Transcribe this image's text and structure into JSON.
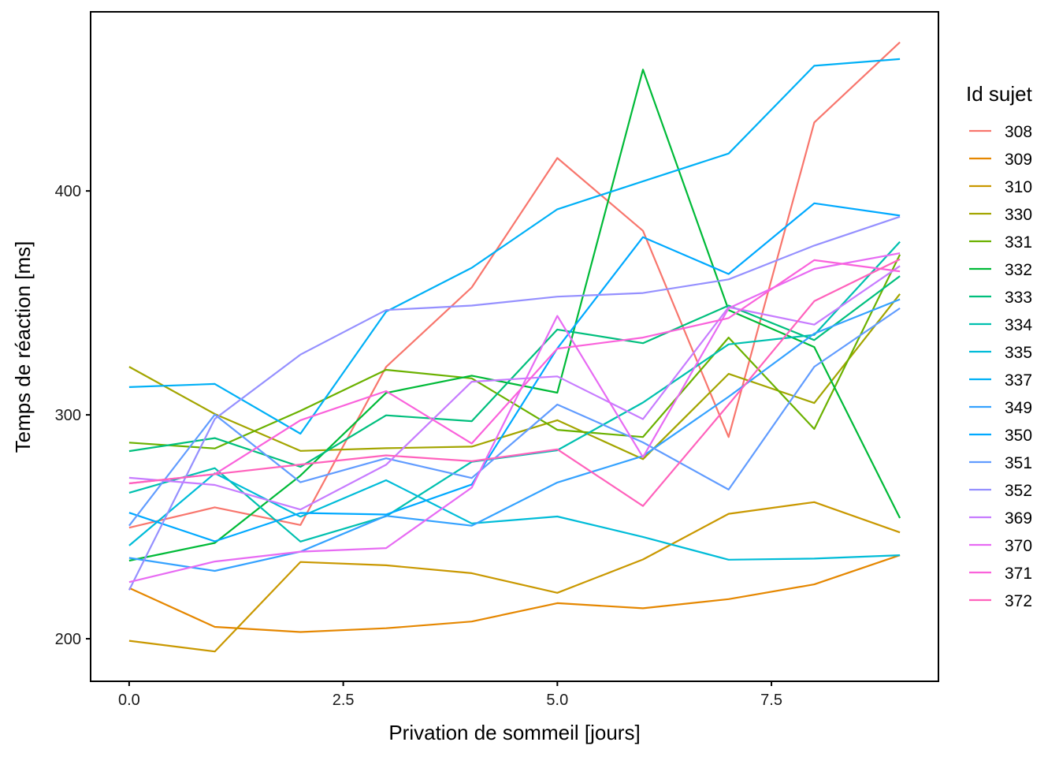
{
  "chart_data": {
    "type": "line",
    "title": "",
    "xlabel": "Privation de sommeil  [jours]",
    "ylabel": "Temps de réaction  [ms]",
    "xlim": [
      -0.45,
      9.45
    ],
    "ylim": [
      181,
      480
    ],
    "x_ticks": [
      0,
      2.5,
      5,
      7.5
    ],
    "x_tick_labels": [
      "0.0",
      "2.5",
      "5.0",
      "7.5"
    ],
    "y_ticks": [
      200,
      300,
      400
    ],
    "y_tick_labels": [
      "200",
      "300",
      "400"
    ],
    "grid": false,
    "legend": {
      "title": "Id sujet",
      "position": "right"
    },
    "x": [
      0,
      1,
      2,
      3,
      4,
      5,
      6,
      7,
      8,
      9
    ],
    "series": [
      {
        "name": "308",
        "color": "#F8766D",
        "values": [
          249.6,
          258.7,
          250.8,
          321.4,
          356.9,
          414.7,
          382.2,
          290.1,
          430.6,
          466.4
        ]
      },
      {
        "name": "309",
        "color": "#E58700",
        "values": [
          222.7,
          205.3,
          203.0,
          204.7,
          207.7,
          215.9,
          213.6,
          217.7,
          224.3,
          237.3
        ]
      },
      {
        "name": "310",
        "color": "#C99800",
        "values": [
          199.1,
          194.3,
          234.3,
          232.8,
          229.3,
          220.5,
          235.4,
          255.8,
          261.0,
          247.5
        ]
      },
      {
        "name": "330",
        "color": "#A3A500",
        "values": [
          321.5,
          300.4,
          283.9,
          285.1,
          285.8,
          297.6,
          280.2,
          318.3,
          305.3,
          354.0
        ]
      },
      {
        "name": "331",
        "color": "#6BB100",
        "values": [
          287.6,
          285.0,
          301.8,
          320.1,
          316.3,
          293.3,
          290.1,
          334.5,
          293.7,
          371.6
        ]
      },
      {
        "name": "332",
        "color": "#00BA38",
        "values": [
          234.9,
          242.8,
          272.9,
          309.8,
          317.5,
          309.9,
          454.2,
          346.8,
          330.3,
          253.9
        ]
      },
      {
        "name": "333",
        "color": "#00BF7D",
        "values": [
          283.8,
          289.6,
          276.8,
          299.8,
          297.2,
          338.1,
          332.0,
          348.8,
          333.4,
          362.0
        ]
      },
      {
        "name": "334",
        "color": "#00C0AF",
        "values": [
          265.2,
          276.2,
          243.4,
          254.7,
          279.0,
          284.2,
          305.5,
          331.5,
          335.7,
          377.3
        ]
      },
      {
        "name": "335",
        "color": "#00BCD8",
        "values": [
          241.6,
          273.9,
          254.5,
          270.8,
          251.5,
          254.6,
          245.5,
          235.3,
          235.8,
          237.3
        ]
      },
      {
        "name": "337",
        "color": "#00B0F6",
        "values": [
          312.4,
          313.8,
          291.6,
          346.1,
          365.7,
          391.8,
          404.3,
          416.7,
          455.9,
          458.9
        ]
      },
      {
        "name": "349",
        "color": "#35A2FF",
        "values": [
          236.1,
          230.3,
          238.9,
          254.9,
          250.5,
          269.8,
          281.6,
          308.1,
          336.3,
          351.6
        ]
      },
      {
        "name": "350",
        "color": "#00A9FF",
        "values": [
          256.3,
          243.5,
          256.2,
          255.5,
          268.9,
          329.7,
          379.4,
          362.9,
          394.5,
          389.0
        ]
      },
      {
        "name": "351",
        "color": "#619CFF",
        "values": [
          250.5,
          300.1,
          269.9,
          280.6,
          271.8,
          304.6,
          287.7,
          266.6,
          321.5,
          347.6
        ]
      },
      {
        "name": "352",
        "color": "#9590FF",
        "values": [
          221.7,
          298.2,
          326.9,
          346.8,
          348.8,
          352.8,
          354.4,
          360.5,
          375.6,
          388.5
        ]
      },
      {
        "name": "369",
        "color": "#C77CFF",
        "values": [
          271.9,
          268.7,
          257.7,
          277.7,
          314.8,
          317.2,
          298.1,
          348.1,
          340.3,
          366.5
        ]
      },
      {
        "name": "370",
        "color": "#E76BF3",
        "values": [
          225.3,
          234.5,
          238.9,
          240.5,
          267.5,
          344.2,
          281.1,
          347.6,
          365.2,
          372.2
        ]
      },
      {
        "name": "371",
        "color": "#FA62DB",
        "values": [
          269.4,
          273.5,
          297.6,
          310.6,
          287.2,
          329.6,
          334.5,
          343.2,
          369.1,
          364.1
        ]
      },
      {
        "name": "372",
        "color": "#FF62BC",
        "values": [
          269.4,
          273.5,
          277.8,
          281.9,
          279.3,
          284.6,
          259.3,
          304.6,
          350.8,
          369.5
        ]
      }
    ]
  }
}
